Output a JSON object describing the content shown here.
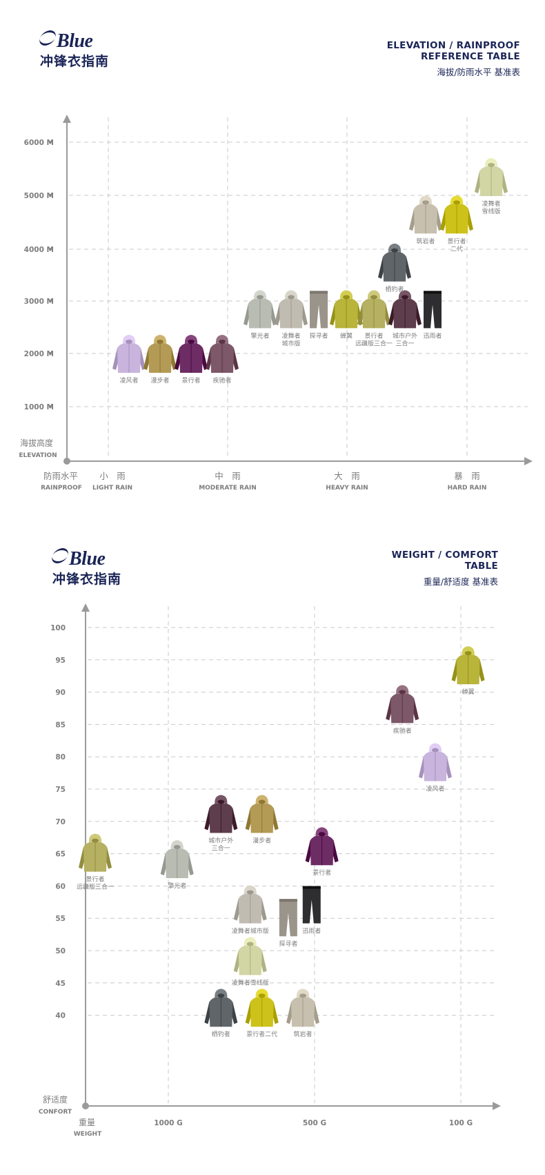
{
  "brand": {
    "logo": "Blue",
    "subtitle": "冲锋衣指南"
  },
  "colors": {
    "navy": "#1a2456",
    "axis": "#9a9a9a",
    "grid": "#c9c9c9",
    "label": "#7d7d7d"
  },
  "chart1": {
    "title_en_line1": "ELEVATION / RAINPROOF",
    "title_en_line2": "REFERENCE TABLE",
    "title_zh": "海拔/防雨水平 基准表",
    "y_axis_label_zh": "海拔高度",
    "y_axis_label_en": "ELEVATION",
    "x_axis_label_zh": "防雨水平",
    "x_axis_label_en": "RAINPROOF"
  },
  "chart2": {
    "title_en_line1": "WEIGHT / COMFORT",
    "title_en_line2": "TABLE",
    "title_zh": "重量/舒适度 基准表",
    "y_axis_label_zh": "舒适度",
    "y_axis_label_en": "CONFORT",
    "x_axis_label_zh": "重量",
    "x_axis_label_en": "WEIGHT"
  },
  "chart_data": [
    {
      "type": "scatter",
      "y_ticks": [
        {
          "label": "1000 M",
          "value": 1000
        },
        {
          "label": "2000 M",
          "value": 2000
        },
        {
          "label": "3000 M",
          "value": 3000
        },
        {
          "label": "4000 M",
          "value": 4000
        },
        {
          "label": "5000 M",
          "value": 5000
        },
        {
          "label": "6000 M",
          "value": 6000
        }
      ],
      "x_categories": [
        {
          "zh": "小　雨",
          "en": "LIGHT RAIN"
        },
        {
          "zh": "中　雨",
          "en": "MODERATE RAIN"
        },
        {
          "zh": "大　雨",
          "en": "HEAVY RAIN"
        },
        {
          "zh": "暴　雨",
          "en": "HARD RAIN"
        }
      ],
      "grid": true,
      "points": [
        {
          "name": "凌风者",
          "x": 0.9,
          "y": 2000,
          "color": "#c8b4dc",
          "style": "jacket"
        },
        {
          "name": "漫步者",
          "x": 1.35,
          "y": 2000,
          "color": "#b39a55",
          "style": "jacket"
        },
        {
          "name": "景行者",
          "x": 1.8,
          "y": 2000,
          "color": "#6d2c64",
          "style": "jacket"
        },
        {
          "name": "疾驰者",
          "x": 2.25,
          "y": 2000,
          "color": "#7d5868",
          "style": "jacket"
        },
        {
          "name": "擎光者",
          "x": 2.8,
          "y": 2850,
          "color": "#b9bcb3",
          "style": "jacket"
        },
        {
          "name": "凌舞者\n城市版",
          "x": 3.25,
          "y": 2850,
          "color": "#c1bcb1",
          "style": "jacket"
        },
        {
          "name": "探寻者",
          "x": 3.65,
          "y": 2850,
          "color": "#9a948b",
          "style": "pants"
        },
        {
          "name": "蝉翼",
          "x": 4.05,
          "y": 2850,
          "color": "#b9b43a",
          "style": "jacket"
        },
        {
          "name": "景行者\n远疆版三合一",
          "x": 4.45,
          "y": 2850,
          "color": "#b5b062",
          "style": "jacket"
        },
        {
          "name": "城市户外\n三合一",
          "x": 4.9,
          "y": 2850,
          "color": "#5e3d4c",
          "style": "jacket"
        },
        {
          "name": "迅雨者",
          "x": 5.3,
          "y": 2850,
          "color": "#2e2e30",
          "style": "pants"
        },
        {
          "name": "栖钓者",
          "x": 4.75,
          "y": 3750,
          "color": "#606569",
          "style": "jacket"
        },
        {
          "name": "筑岩者",
          "x": 5.2,
          "y": 4650,
          "color": "#c7c0ae",
          "style": "jacket"
        },
        {
          "name": "景行者\n二代",
          "x": 5.65,
          "y": 4650,
          "color": "#cdc21a",
          "style": "jacket"
        },
        {
          "name": "凌舞者\n雪线版",
          "x": 6.15,
          "y": 5350,
          "color": "#d2d5a4",
          "style": "jacket"
        }
      ]
    },
    {
      "type": "scatter",
      "y_ticks": [
        40,
        45,
        50,
        55,
        60,
        65,
        70,
        75,
        80,
        85,
        90,
        95,
        100
      ],
      "x_ticks": [
        {
          "label": "1000 G",
          "value": 1000
        },
        {
          "label": "500 G",
          "value": 500
        },
        {
          "label": "100 G",
          "value": 100
        }
      ],
      "grid": true,
      "points": [
        {
          "name": "景行者\n远疆版三合一",
          "x": 1250,
          "y": 65,
          "color": "#b5b062",
          "style": "jacket"
        },
        {
          "name": "擎光者",
          "x": 970,
          "y": 64,
          "color": "#b9bcb3",
          "style": "jacket"
        },
        {
          "name": "城市户外\n三合一",
          "x": 820,
          "y": 71,
          "color": "#5e3d4c",
          "style": "jacket"
        },
        {
          "name": "漫步者",
          "x": 680,
          "y": 71,
          "color": "#b39a55",
          "style": "jacket"
        },
        {
          "name": "景行者",
          "x": 480,
          "y": 66,
          "color": "#6d2c64",
          "style": "jacket"
        },
        {
          "name": "凌舞者城市版",
          "x": 720,
          "y": 57,
          "color": "#c1bcb1",
          "style": "jacket"
        },
        {
          "name": "探寻者",
          "x": 590,
          "y": 55,
          "color": "#9a948b",
          "style": "pants"
        },
        {
          "name": "迅雨者",
          "x": 510,
          "y": 57,
          "color": "#2e2e30",
          "style": "pants"
        },
        {
          "name": "凌舞者雪线版",
          "x": 720,
          "y": 49,
          "color": "#d2d5a4",
          "style": "jacket"
        },
        {
          "name": "栖钓者",
          "x": 820,
          "y": 41,
          "color": "#606569",
          "style": "jacket"
        },
        {
          "name": "景行者二代",
          "x": 680,
          "y": 41,
          "color": "#cdc21a",
          "style": "jacket"
        },
        {
          "name": "筑岩者",
          "x": 540,
          "y": 41,
          "color": "#c7c0ae",
          "style": "jacket"
        },
        {
          "name": "疾驰者",
          "x": 260,
          "y": 88,
          "color": "#7d5868",
          "style": "jacket"
        },
        {
          "name": "凌风者",
          "x": 170,
          "y": 79,
          "color": "#c8b4dc",
          "style": "jacket"
        },
        {
          "name": "蝉翼",
          "x": 80,
          "y": 94,
          "color": "#b9b43a",
          "style": "jacket"
        }
      ]
    }
  ]
}
